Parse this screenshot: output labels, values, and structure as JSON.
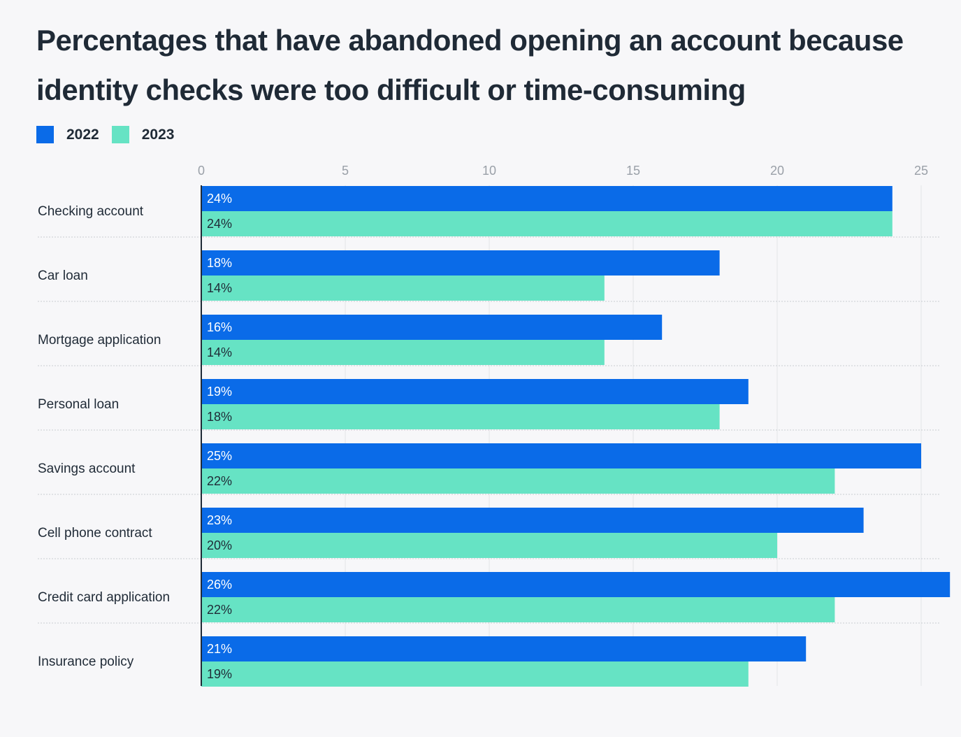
{
  "chart_data": {
    "type": "bar",
    "orientation": "horizontal",
    "title": "Percentages that have abandoned opening an account because identity checks were too difficult or time-consuming",
    "categories": [
      "Checking account",
      "Car loan",
      "Mortgage application",
      "Personal loan",
      "Savings account",
      "Cell phone contract",
      "Credit card application",
      "Insurance policy"
    ],
    "series": [
      {
        "name": "2022",
        "color": "#0a6be8",
        "values": [
          24,
          18,
          16,
          19,
          25,
          23,
          26,
          21
        ]
      },
      {
        "name": "2023",
        "color": "#66e3c4",
        "values": [
          24,
          14,
          14,
          18,
          22,
          20,
          22,
          19
        ]
      }
    ],
    "xticks": [
      0,
      5,
      10,
      15,
      20,
      25
    ],
    "xlim": [
      0,
      26
    ],
    "grid": true,
    "legend": "top-left",
    "label_suffix": "%"
  }
}
